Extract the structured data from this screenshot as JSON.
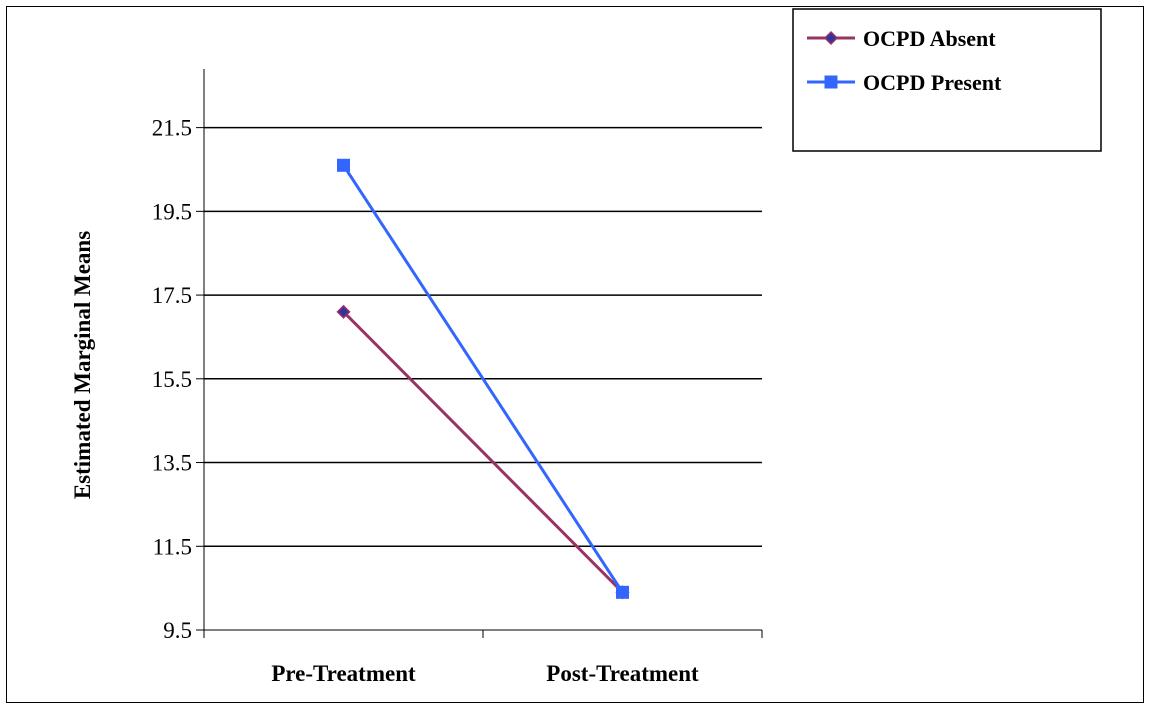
{
  "chart_data": {
    "type": "line",
    "title": "",
    "xlabel": "",
    "ylabel": "Estimated Marginal Means",
    "categories": [
      "Pre-Treatment",
      "Post-Treatment"
    ],
    "ylim": [
      9.5,
      22.9
    ],
    "yticks": [
      "9.5",
      "11.5",
      "13.5",
      "15.5",
      "17.5",
      "19.5",
      "21.5"
    ],
    "grid": true,
    "legend_position": "top-right",
    "series": [
      {
        "name": "OCPD Absent",
        "values": [
          17.1,
          10.4
        ],
        "color": "#993366",
        "marker": "diamond",
        "marker_fill": "#333399"
      },
      {
        "name": "OCPD Present",
        "values": [
          20.6,
          10.4
        ],
        "color": "#3366FF",
        "marker": "square",
        "marker_fill": "#3366FF"
      }
    ]
  }
}
